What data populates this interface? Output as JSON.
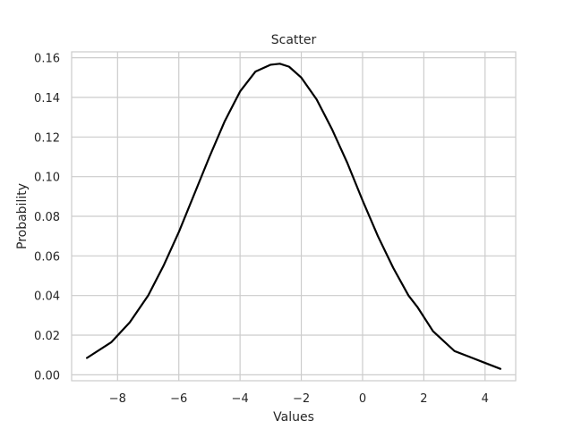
{
  "chart_data": {
    "type": "line",
    "title": "Scatter",
    "xlabel": "Values",
    "ylabel": "Probability",
    "xlim": [
      -9.5,
      5.0
    ],
    "ylim": [
      -0.003,
      0.163
    ],
    "xticks": [
      -8,
      -6,
      -4,
      -2,
      0,
      2,
      4
    ],
    "xtick_labels": [
      "−8",
      "−6",
      "−4",
      "−2",
      "0",
      "2",
      "4"
    ],
    "yticks": [
      0.0,
      0.02,
      0.04,
      0.06,
      0.08,
      0.1,
      0.12,
      0.14,
      0.16
    ],
    "ytick_labels": [
      "0.00",
      "0.02",
      "0.04",
      "0.06",
      "0.08",
      "0.10",
      "0.12",
      "0.14",
      "0.16"
    ],
    "grid": true,
    "series": [
      {
        "color": "#000000",
        "x": [
          -9.0,
          -8.2,
          -7.6,
          -7.0,
          -6.5,
          -6.0,
          -5.5,
          -5.0,
          -4.5,
          -4.0,
          -3.5,
          -3.0,
          -2.7,
          -2.4,
          -2.0,
          -1.5,
          -1.0,
          -0.5,
          0.0,
          0.5,
          1.0,
          1.5,
          1.8,
          2.3,
          3.0,
          3.5,
          4.0,
          4.5
        ],
        "y": [
          0.0085,
          0.0165,
          0.0265,
          0.04,
          0.055,
          0.072,
          0.091,
          0.11,
          0.128,
          0.143,
          0.153,
          0.1565,
          0.157,
          0.1555,
          0.15,
          0.139,
          0.124,
          0.107,
          0.088,
          0.07,
          0.054,
          0.04,
          0.034,
          0.022,
          0.012,
          0.009,
          0.006,
          0.003
        ]
      }
    ]
  }
}
